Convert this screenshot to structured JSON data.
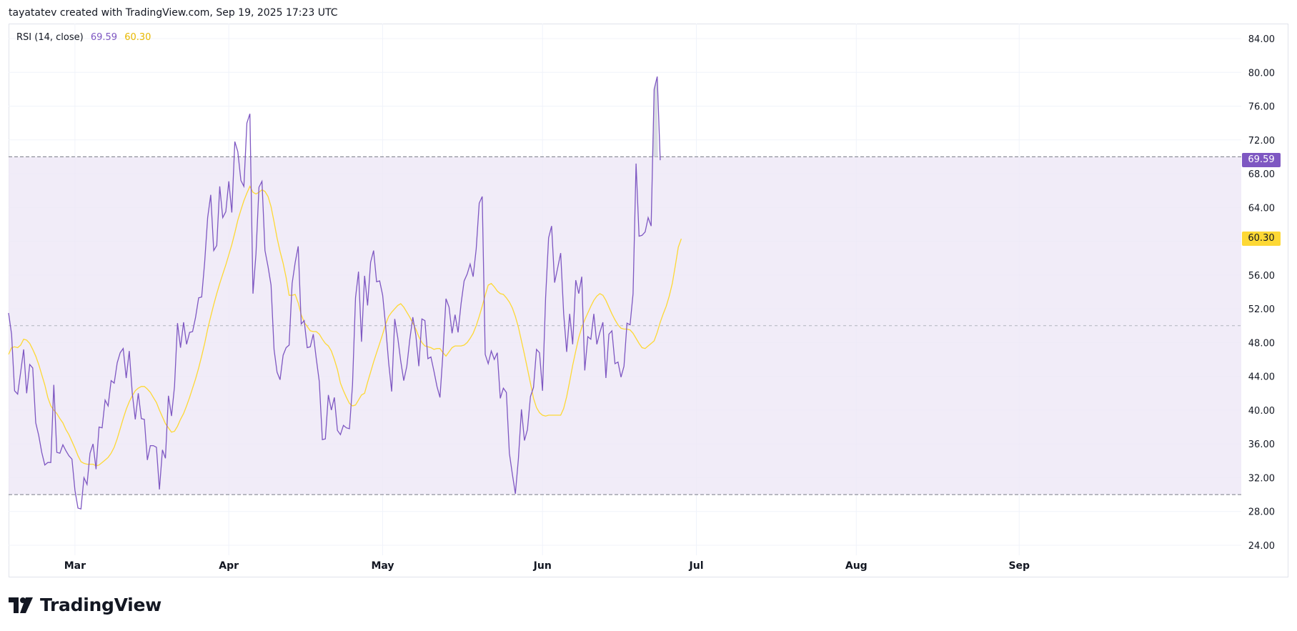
{
  "header": {
    "text": "tayatatev created with TradingView.com, Sep 19, 2025 17:23 UTC"
  },
  "legend": {
    "label": "RSI (14, close)",
    "rsi_value": "69.59",
    "ma_value": "60.30"
  },
  "badges": {
    "rsi": "69.59",
    "ma": "60.30"
  },
  "footer": {
    "brand": "TradingView"
  },
  "colors": {
    "rsi_line": "#7e57c2",
    "ma_line": "#fdd835",
    "band_fill": "#ede7f6",
    "grid": "#f0f3fa",
    "axis_text": "#131722"
  },
  "chart_data": {
    "type": "line",
    "title": "",
    "xlabel": "",
    "ylabel": "",
    "ylim": [
      24,
      84
    ],
    "yticks": [
      "24.00",
      "28.00",
      "32.00",
      "36.00",
      "40.00",
      "44.00",
      "48.00",
      "52.00",
      "56.00",
      "60.00",
      "64.00",
      "68.00",
      "72.00",
      "76.00",
      "80.00",
      "84.00"
    ],
    "ytick_values": [
      24,
      28,
      32,
      36,
      40,
      44,
      48,
      52,
      56,
      60,
      64,
      68,
      72,
      76,
      80,
      84
    ],
    "xticks": [
      {
        "label": "Mar",
        "x": 22
      },
      {
        "label": "Apr",
        "x": 73
      },
      {
        "label": "May",
        "x": 124
      },
      {
        "label": "Jun",
        "x": 177
      },
      {
        "label": "Jul",
        "x": 228
      },
      {
        "label": "Aug",
        "x": 281
      },
      {
        "label": "Sep",
        "x": 335
      }
    ],
    "bands": {
      "upper": 70,
      "middle": 50,
      "lower": 30
    },
    "grid": true,
    "x_range": [
      0,
      388
    ],
    "series": [
      {
        "name": "RSI",
        "x_start": 0,
        "values": [
          51.5,
          49,
          42.3,
          41.9,
          44.5,
          47.2,
          42,
          45.4,
          45,
          38.5,
          37,
          35,
          33.5,
          33.8,
          33.8,
          43,
          35,
          34.9,
          35.9,
          35.2,
          34.6,
          34.2,
          30.5,
          28.4,
          28.3,
          32,
          31.2,
          34.9,
          36,
          33,
          38,
          37.9,
          41.2,
          40.5,
          43.5,
          43.2,
          45.6,
          46.8,
          47.3,
          43.8,
          47,
          42,
          38.9,
          42,
          39,
          38.9,
          34.1,
          35.8,
          35.8,
          35.6,
          30.6,
          35.3,
          34.3,
          41.7,
          39.3,
          42.8,
          50.3,
          47.4,
          50.4,
          47.8,
          49.2,
          49.3,
          51,
          53.3,
          53.4,
          57.5,
          62.8,
          65.5,
          58.9,
          59.5,
          66.5,
          62.8,
          63.5,
          67.1,
          63.4,
          71.8,
          70.6,
          67.2,
          66.5,
          74,
          75.1,
          53.8,
          58.5,
          66.4,
          67.1,
          58.9,
          57,
          54.8,
          47.2,
          44.5,
          43.6,
          46.5,
          47.4,
          47.7,
          55,
          57.5,
          59.4,
          50.2,
          50.6,
          47.4,
          47.5,
          49,
          46.1,
          43.4,
          36.5,
          36.6,
          41.8,
          40,
          41.5,
          37.6,
          37.1,
          38.2,
          37.9,
          37.8,
          43,
          53.3,
          56.4,
          48.1,
          55.9,
          52.4,
          57.5,
          58.9,
          55.2,
          55.3,
          53.6,
          49.9,
          45.6,
          42.2,
          50.8,
          48.6,
          45.8,
          43.5,
          45.2,
          48.4,
          51,
          48.9,
          45.2,
          50.8,
          50.6,
          46.1,
          46.3,
          44.6,
          42.8,
          41.5,
          46.8,
          53.2,
          52.2,
          49.1,
          51.3,
          49.2,
          52.6,
          55.3,
          56.1,
          57.3,
          55.8,
          59.1,
          64.5,
          65.3,
          46.6,
          45.5,
          47,
          46,
          46.8,
          41.4,
          42.6,
          42.1,
          34.9,
          32.4,
          30.1,
          34.3,
          40.1,
          36.4,
          37.7,
          41.6,
          42.7,
          47.2,
          46.8,
          42.3,
          53.3,
          60.4,
          61.8,
          55.1,
          56.8,
          58.6,
          51.4,
          46.9,
          51.4,
          47.8,
          55.4,
          53.8,
          55.8,
          44.7,
          48.7,
          48.4,
          51.4,
          47.8,
          49.2,
          50.4,
          43.8,
          49,
          49.4,
          45.5,
          45.7,
          43.9,
          45.2,
          50.3,
          50.1,
          53.8,
          69.2,
          60.6,
          60.7,
          61.1,
          62.8,
          61.8,
          78,
          79.5,
          69.6
        ]
      },
      {
        "name": "RSI-based MA",
        "x_start": 0,
        "values": [
          46.6,
          47.4,
          47.5,
          47.4,
          47.7,
          48.4,
          48.3,
          47.9,
          47.2,
          46.4,
          45.4,
          44.2,
          43,
          41.5,
          40.5,
          40,
          39.6,
          39,
          38.5,
          37.7,
          37.1,
          36.3,
          35.5,
          34.6,
          33.9,
          33.7,
          33.6,
          33.6,
          33.6,
          33.4,
          33.5,
          33.8,
          34.1,
          34.4,
          34.9,
          35.6,
          36.6,
          37.8,
          39,
          40.1,
          41,
          41.7,
          42.3,
          42.6,
          42.8,
          42.8,
          42.5,
          42.1,
          41.5,
          40.9,
          40,
          39.2,
          38.4,
          37.9,
          37.4,
          37.5,
          38.1,
          38.9,
          39.6,
          40.5,
          41.5,
          42.6,
          43.7,
          45,
          46.4,
          47.9,
          49.6,
          51.1,
          52.5,
          53.8,
          55,
          56.1,
          57.2,
          58.4,
          59.6,
          61,
          62.5,
          63.7,
          64.8,
          65.7,
          66.5,
          65.8,
          65.6,
          65.8,
          66.1,
          65.9,
          65.3,
          64.1,
          62.3,
          60.4,
          58.8,
          57.4,
          55.7,
          53.6,
          53.6,
          53.7,
          52.7,
          51.3,
          50.4,
          49.9,
          49.4,
          49.3,
          49.3,
          49,
          48.4,
          47.9,
          47.6,
          47,
          46,
          44.8,
          43.2,
          42.3,
          41.5,
          40.8,
          40.5,
          40.6,
          41.2,
          41.8,
          42,
          43.3,
          44.5,
          45.7,
          46.8,
          47.9,
          49,
          50.2,
          51.1,
          51.6,
          52,
          52.4,
          52.6,
          52.2,
          51.6,
          51,
          50.3,
          49.6,
          48.7,
          48,
          47.6,
          47.5,
          47.4,
          47.2,
          47.3,
          47.3,
          46.8,
          46.4,
          46.9,
          47.4,
          47.6,
          47.6,
          47.6,
          47.7,
          48,
          48.5,
          49.1,
          50,
          51.1,
          52.3,
          53.6,
          54.8,
          55,
          54.6,
          54.1,
          53.8,
          53.7,
          53.3,
          52.8,
          52.1,
          51.1,
          49.8,
          48.2,
          46.6,
          44.9,
          43.2,
          41.4,
          40.3,
          39.7,
          39.4,
          39.3,
          39.4,
          39.4,
          39.4,
          39.4,
          39.4,
          40.2,
          41.6,
          43.4,
          45.3,
          47,
          48.6,
          49.8,
          50.7,
          51.5,
          52.3,
          53,
          53.5,
          53.8,
          53.6,
          53,
          52.2,
          51.4,
          50.7,
          50.1,
          49.7,
          49.6,
          49.6,
          49.5,
          49.1,
          48.5,
          47.9,
          47.4,
          47.3,
          47.6,
          47.9,
          48.2,
          49.2,
          50.4,
          51.4,
          52.3,
          53.5,
          55,
          57.1,
          59.3,
          60.3
        ]
      }
    ]
  }
}
